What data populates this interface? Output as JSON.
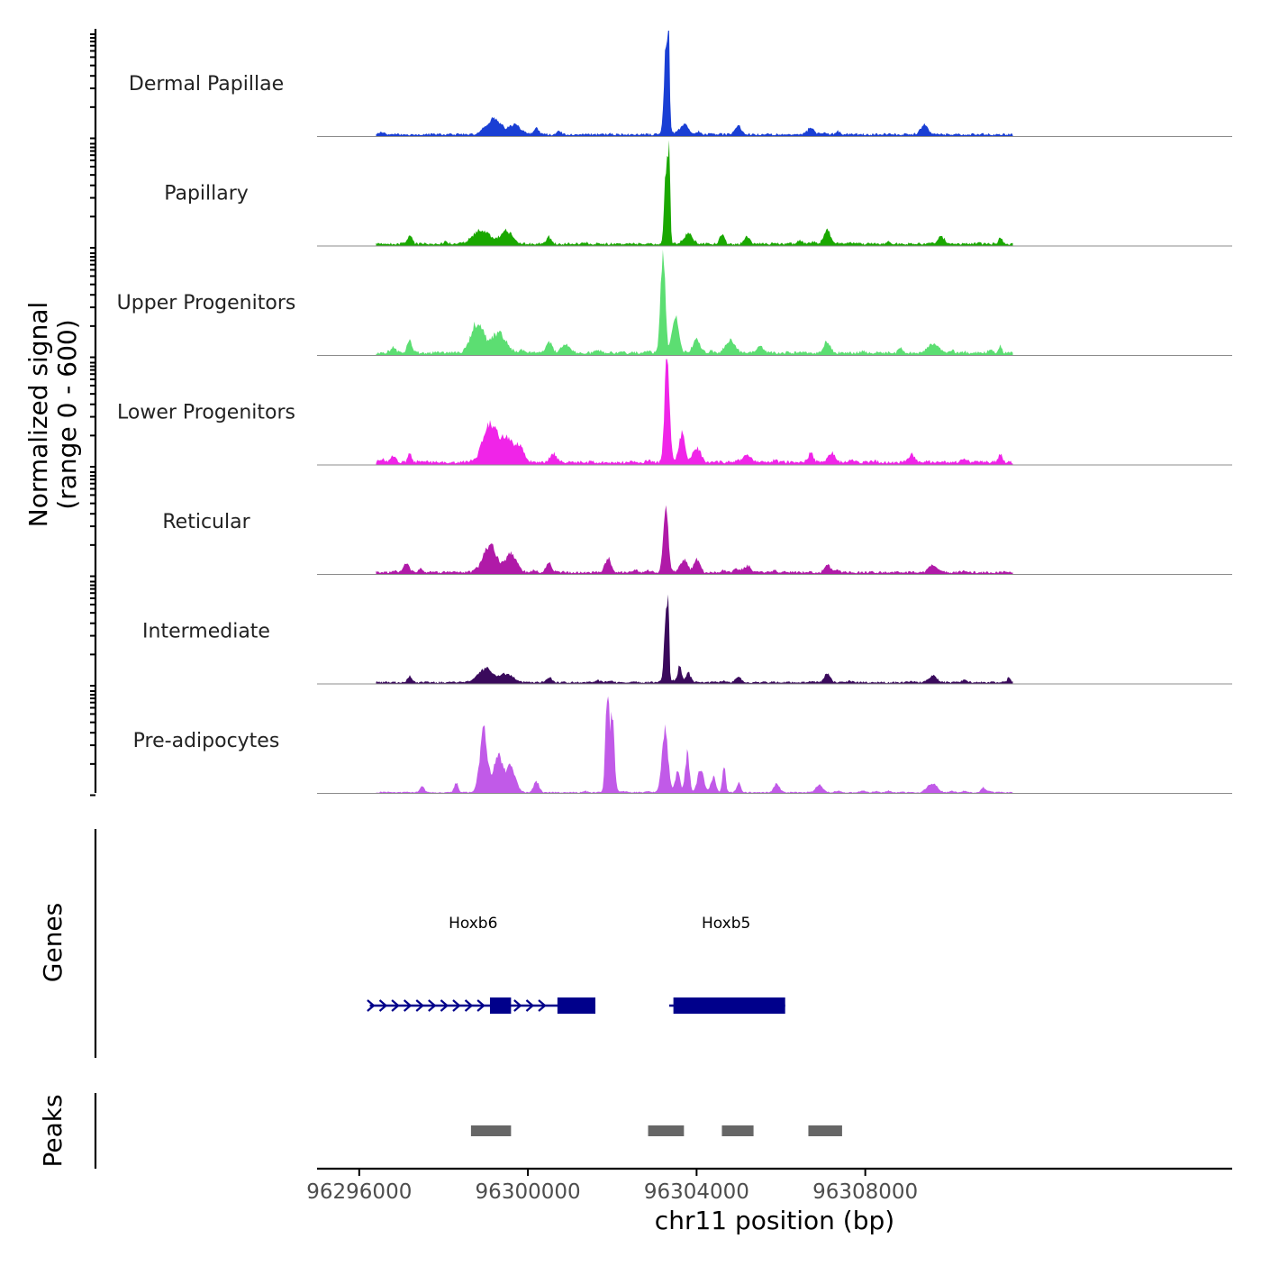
{
  "chart_data": {
    "type": "area",
    "title": "",
    "ylabel_line1": "Normalized signal",
    "ylabel_line2": "(range 0 - 600)",
    "ylim": [
      0,
      600
    ],
    "xlabel": "chr11 position (bp)",
    "xlim": [
      96295000,
      96316700
    ],
    "x_ticks": [
      96296000,
      96300000,
      96304000,
      96308000
    ],
    "x_tick_labels": [
      "96296000",
      "96300000",
      "96304000",
      "96308000"
    ],
    "data_x_range": [
      96296400,
      96311500
    ],
    "tracks": [
      {
        "name": "Dermal Papillae",
        "color": "#1a3fd4",
        "baseline": 20,
        "peaks": [
          [
            96299200,
            90,
            230
          ],
          [
            96299700,
            60,
            180
          ],
          [
            96303270,
            460,
            65
          ],
          [
            96303340,
            520,
            35
          ],
          [
            96303700,
            50,
            140
          ],
          [
            96300200,
            35,
            90
          ],
          [
            96305000,
            40,
            100
          ],
          [
            96306700,
            35,
            120
          ],
          [
            96309400,
            55,
            130
          ]
        ]
      },
      {
        "name": "Papillary",
        "color": "#1aa800",
        "baseline": 20,
        "peaks": [
          [
            96298900,
            80,
            280
          ],
          [
            96299500,
            70,
            200
          ],
          [
            96297200,
            50,
            70
          ],
          [
            96300500,
            40,
            80
          ],
          [
            96303280,
            460,
            60
          ],
          [
            96303350,
            460,
            35
          ],
          [
            96303800,
            60,
            140
          ],
          [
            96304600,
            55,
            80
          ],
          [
            96305200,
            40,
            90
          ],
          [
            96307100,
            70,
            110
          ],
          [
            96309800,
            40,
            120
          ],
          [
            96311200,
            30,
            60
          ]
        ]
      },
      {
        "name": "Upper Progenitors",
        "color": "#5cde72",
        "baseline": 25,
        "peaks": [
          [
            96298800,
            170,
            200
          ],
          [
            96299300,
            110,
            250
          ],
          [
            96297200,
            70,
            70
          ],
          [
            96296800,
            30,
            90
          ],
          [
            96300500,
            60,
            100
          ],
          [
            96300900,
            45,
            150
          ],
          [
            96303200,
            600,
            75
          ],
          [
            96303500,
            200,
            110
          ],
          [
            96304000,
            80,
            120
          ],
          [
            96304800,
            70,
            100
          ],
          [
            96305500,
            40,
            120
          ],
          [
            96307100,
            55,
            110
          ],
          [
            96309600,
            50,
            180
          ],
          [
            96311200,
            40,
            50
          ]
        ]
      },
      {
        "name": "Lower Progenitors",
        "color": "#f024e8",
        "baseline": 25,
        "peaks": [
          [
            96299100,
            210,
            230
          ],
          [
            96299500,
            140,
            200
          ],
          [
            96299800,
            80,
            160
          ],
          [
            96297200,
            60,
            60
          ],
          [
            96296800,
            40,
            90
          ],
          [
            96300600,
            50,
            100
          ],
          [
            96303300,
            600,
            80
          ],
          [
            96303650,
            160,
            100
          ],
          [
            96304000,
            80,
            130
          ],
          [
            96305200,
            45,
            120
          ],
          [
            96306700,
            45,
            90
          ],
          [
            96307200,
            50,
            110
          ],
          [
            96309100,
            45,
            110
          ],
          [
            96311200,
            40,
            70
          ]
        ]
      },
      {
        "name": "Reticular",
        "color": "#b01aa8",
        "baseline": 20,
        "peaks": [
          [
            96299100,
            150,
            230
          ],
          [
            96299600,
            100,
            180
          ],
          [
            96297100,
            40,
            90
          ],
          [
            96300500,
            50,
            100
          ],
          [
            96301900,
            80,
            100
          ],
          [
            96303270,
            370,
            80
          ],
          [
            96303700,
            70,
            120
          ],
          [
            96304000,
            60,
            100
          ],
          [
            96305200,
            40,
            120
          ],
          [
            96307100,
            40,
            100
          ],
          [
            96309600,
            45,
            130
          ]
        ]
      },
      {
        "name": "Intermediate",
        "color": "#3a0a5c",
        "baseline": 15,
        "peaks": [
          [
            96299000,
            75,
            260
          ],
          [
            96299500,
            50,
            200
          ],
          [
            96297200,
            40,
            70
          ],
          [
            96300500,
            30,
            90
          ],
          [
            96303270,
            380,
            55
          ],
          [
            96303330,
            420,
            30
          ],
          [
            96303600,
            100,
            60
          ],
          [
            96303800,
            60,
            80
          ],
          [
            96305000,
            30,
            100
          ],
          [
            96307100,
            45,
            100
          ],
          [
            96309600,
            40,
            130
          ],
          [
            96311400,
            30,
            50
          ]
        ]
      },
      {
        "name": "Pre-adipocytes",
        "color": "#c15ae8",
        "baseline": 10,
        "peaks": [
          [
            96298950,
            340,
            130
          ],
          [
            96299300,
            220,
            150
          ],
          [
            96299600,
            140,
            150
          ],
          [
            96300200,
            60,
            90
          ],
          [
            96301880,
            560,
            60
          ],
          [
            96302000,
            420,
            70
          ],
          [
            96303250,
            360,
            100
          ],
          [
            96303550,
            120,
            80
          ],
          [
            96303780,
            220,
            70
          ],
          [
            96304100,
            130,
            100
          ],
          [
            96304400,
            80,
            80
          ],
          [
            96304650,
            150,
            55
          ],
          [
            96305000,
            60,
            60
          ],
          [
            96305900,
            50,
            100
          ],
          [
            96306900,
            40,
            110
          ],
          [
            96309600,
            50,
            150
          ],
          [
            96298300,
            50,
            70
          ],
          [
            96297500,
            30,
            60
          ],
          [
            96310800,
            30,
            70
          ]
        ]
      }
    ],
    "genes_panel_title": "Genes",
    "genes_color": "#00008b",
    "genes": [
      {
        "name": "Hoxb6",
        "label_x": 96298700,
        "start": 96296250,
        "end": 96301600,
        "strand": "+",
        "exons": [
          [
            96299100,
            96299600
          ],
          [
            96300700,
            96301600
          ]
        ]
      },
      {
        "name": "Hoxb5",
        "label_x": 96304700,
        "start": 96303350,
        "end": 96306100,
        "strand": "+",
        "exons": [
          [
            96303450,
            96306100
          ]
        ]
      }
    ],
    "peaks_panel_title": "Peaks",
    "peaks_color": "#666666",
    "peak_regions": [
      [
        96298650,
        96299600
      ],
      [
        96302850,
        96303700
      ],
      [
        96304600,
        96305350
      ],
      [
        96306650,
        96307450
      ]
    ]
  }
}
